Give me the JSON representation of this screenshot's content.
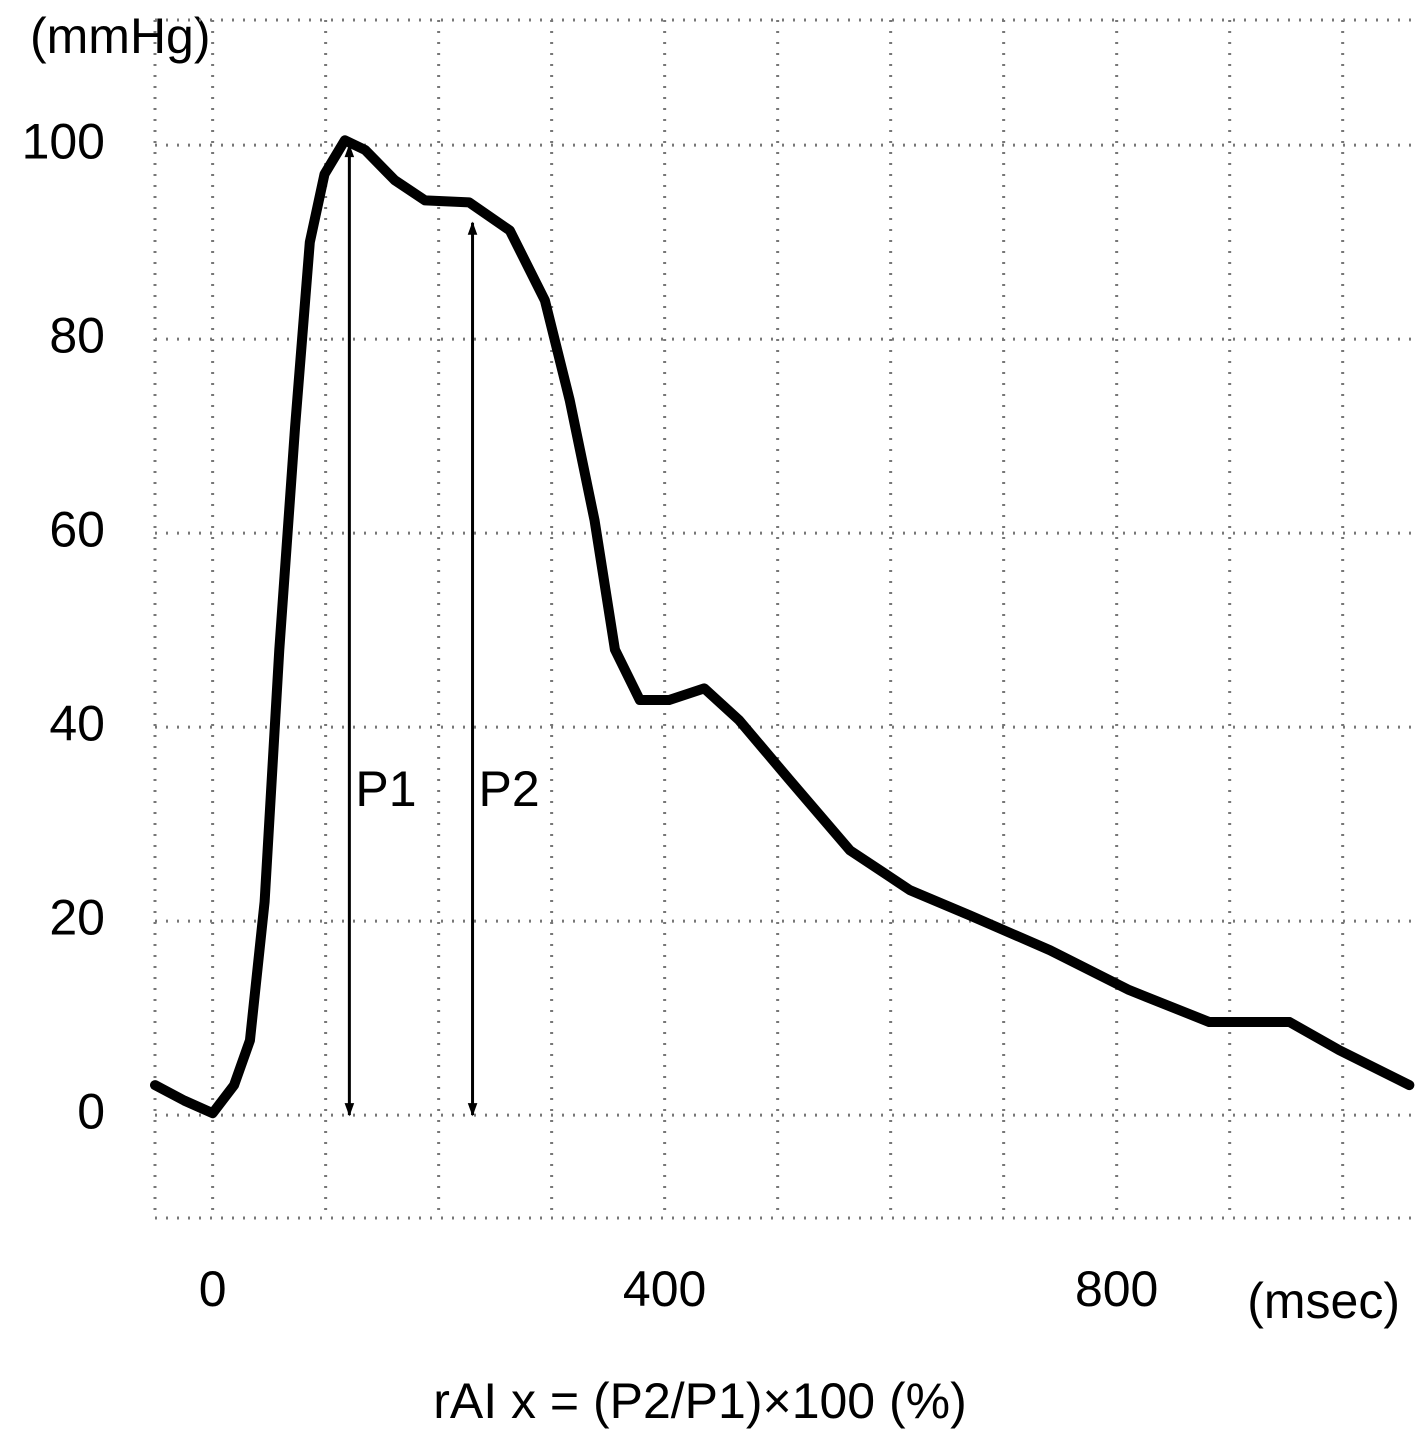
{
  "chart_data": {
    "type": "line",
    "y_unit": "(mmHg)",
    "x_unit": "(msec)",
    "formula": "rAI x  = (P2/P1)×100 (%)",
    "x": [
      -51,
      -25,
      0,
      19,
      33,
      46,
      59,
      73,
      86,
      99,
      117,
      135,
      161,
      188,
      227,
      263,
      294,
      316,
      338,
      356,
      378,
      404,
      435,
      466,
      511,
      564,
      617,
      670,
      741,
      811,
      882,
      953,
      997,
      1059
    ],
    "series": [
      {
        "color": "#000000",
        "values": [
          3.1,
          1.5,
          0.2,
          3.1,
          7.7,
          22,
          48,
          71,
          90,
          97,
          100.5,
          99.5,
          96.4,
          94.3,
          94.1,
          91.2,
          84,
          73.7,
          61.3,
          48,
          42.8,
          42.8,
          44,
          40.7,
          34.5,
          27.3,
          23.2,
          20.6,
          17,
          12.9,
          9.6,
          9.6,
          6.7,
          3.1
        ]
      }
    ],
    "xlim": [
      -51,
      1064
    ],
    "ylim": [
      -10.6,
      112.9
    ],
    "xticks": [
      0,
      400,
      800
    ],
    "yticks": [
      0,
      20,
      40,
      60,
      80,
      100
    ],
    "xgrid": [
      0,
      100,
      200,
      300,
      400,
      500,
      600,
      700,
      800,
      900,
      1000
    ],
    "grid": true,
    "arrows": [
      {
        "label": "P1",
        "x": 121,
        "from": 0,
        "to": 100
      },
      {
        "label": "P2",
        "x": 230,
        "from": 0,
        "to": 92
      }
    ]
  }
}
